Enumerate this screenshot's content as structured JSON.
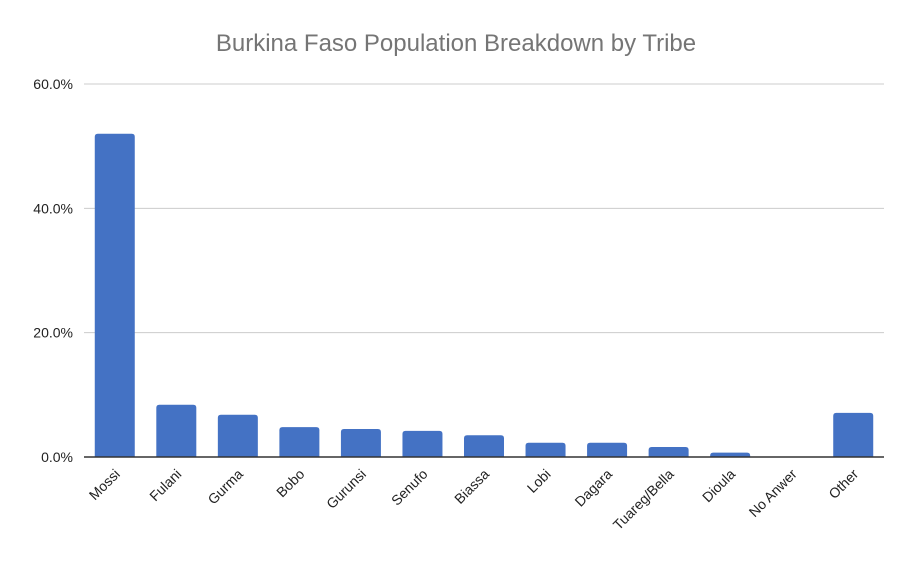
{
  "chart_data": {
    "type": "bar",
    "title": "Burkina Faso Population Breakdown by Tribe",
    "xlabel": "",
    "ylabel": "",
    "categories": [
      "Mossi",
      "Fulani",
      "Gurma",
      "Bobo",
      "Gurunsi",
      "Senufo",
      "Biassa",
      "Lobi",
      "Dagara",
      "Tuareg/Bella",
      "Dioula",
      "No Anwer",
      "Other"
    ],
    "values": [
      52.0,
      8.4,
      6.8,
      4.8,
      4.5,
      4.2,
      3.5,
      2.3,
      2.3,
      1.6,
      0.7,
      0.0,
      7.1
    ],
    "ylim": [
      0,
      60
    ],
    "yticks": [
      0,
      20,
      40,
      60
    ],
    "ytick_labels": [
      "0.0%",
      "20.0%",
      "40.0%",
      "60.0%"
    ],
    "grid": true,
    "legend": "none",
    "bar_color": "#4472c4"
  }
}
